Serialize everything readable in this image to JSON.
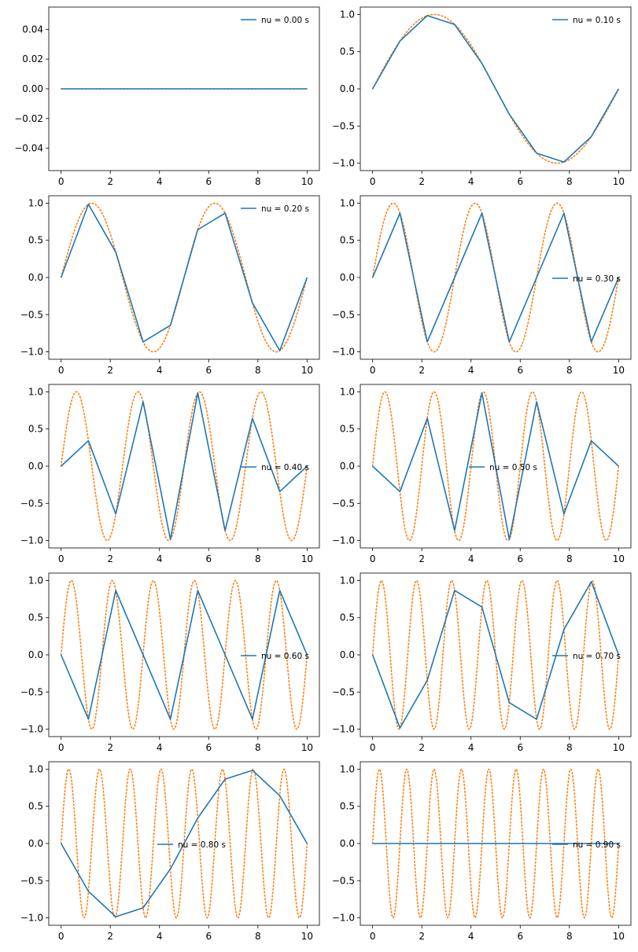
{
  "colors": {
    "sampled": "#1f77b4",
    "continuous": "#ff7f0e",
    "axes": "#000000",
    "background": "#ffffff"
  },
  "chart_data": [
    {
      "type": "line",
      "legend": "nu = 0.00 s",
      "legend_loc": "upper right",
      "sample_times": [
        0,
        1.111,
        2.222,
        3.333,
        4.444,
        5.556,
        6.667,
        7.778,
        8.889,
        10
      ],
      "sampled_values": [
        0,
        0,
        0,
        0,
        0,
        0,
        0,
        0,
        0,
        0
      ],
      "continuous_cycles": 0,
      "xlim": [
        -0.5,
        10.5
      ],
      "ylim": [
        -0.055,
        0.055
      ],
      "xticks": [
        0,
        2,
        4,
        6,
        8,
        10
      ],
      "yticks": [
        -0.04,
        -0.02,
        0.0,
        0.02,
        0.04
      ],
      "ytick_labels": [
        "−0.04",
        "−0.02",
        "0.00",
        "0.02",
        "0.04"
      ]
    },
    {
      "type": "line",
      "legend": "nu = 0.10 s",
      "legend_loc": "upper right",
      "sample_times": [
        0,
        1.111,
        2.222,
        3.333,
        4.444,
        5.556,
        6.667,
        7.778,
        8.889,
        10
      ],
      "sampled_values": [
        0,
        0.643,
        0.985,
        0.866,
        0.342,
        -0.342,
        -0.866,
        -0.985,
        -0.643,
        0
      ],
      "continuous_cycles": 1,
      "xlim": [
        -0.5,
        10.5
      ],
      "ylim": [
        -1.1,
        1.1
      ],
      "xticks": [
        0,
        2,
        4,
        6,
        8,
        10
      ],
      "yticks": [
        -1,
        -0.5,
        0,
        0.5,
        1
      ],
      "ytick_labels": [
        "−1.0",
        "−0.5",
        "0.0",
        "0.5",
        "1.0"
      ]
    },
    {
      "type": "line",
      "legend": "nu = 0.20 s",
      "legend_loc": "upper right",
      "sample_times": [
        0,
        1.111,
        2.222,
        3.333,
        4.444,
        5.556,
        6.667,
        7.778,
        8.889,
        10
      ],
      "sampled_values": [
        0,
        0.985,
        0.342,
        -0.866,
        -0.643,
        0.643,
        0.866,
        -0.342,
        -0.985,
        0
      ],
      "continuous_cycles": 2,
      "xlim": [
        -0.5,
        10.5
      ],
      "ylim": [
        -1.1,
        1.1
      ],
      "xticks": [
        0,
        2,
        4,
        6,
        8,
        10
      ],
      "yticks": [
        -1,
        -0.5,
        0,
        0.5,
        1
      ],
      "ytick_labels": [
        "−1.0",
        "−0.5",
        "0.0",
        "0.5",
        "1.0"
      ]
    },
    {
      "type": "line",
      "legend": "nu = 0.30 s",
      "legend_loc": "center right",
      "sample_times": [
        0,
        1.111,
        2.222,
        3.333,
        4.444,
        5.556,
        6.667,
        7.778,
        8.889,
        10
      ],
      "sampled_values": [
        0,
        0.866,
        -0.866,
        0,
        0.866,
        -0.866,
        0,
        0.866,
        -0.866,
        0
      ],
      "continuous_cycles": 3,
      "xlim": [
        -0.5,
        10.5
      ],
      "ylim": [
        -1.1,
        1.1
      ],
      "xticks": [
        0,
        2,
        4,
        6,
        8,
        10
      ],
      "yticks": [
        -1,
        -0.5,
        0,
        0.5,
        1
      ],
      "ytick_labels": [
        "−1.0",
        "−0.5",
        "0.0",
        "0.5",
        "1.0"
      ]
    },
    {
      "type": "line",
      "legend": "nu = 0.40 s",
      "legend_loc": "center right",
      "sample_times": [
        0,
        1.111,
        2.222,
        3.333,
        4.444,
        5.556,
        6.667,
        7.778,
        8.889,
        10
      ],
      "sampled_values": [
        0,
        0.342,
        -0.643,
        0.866,
        -0.985,
        0.985,
        -0.866,
        0.643,
        -0.342,
        0
      ],
      "continuous_cycles": 4,
      "xlim": [
        -0.5,
        10.5
      ],
      "ylim": [
        -1.1,
        1.1
      ],
      "xticks": [
        0,
        2,
        4,
        6,
        8,
        10
      ],
      "yticks": [
        -1,
        -0.5,
        0,
        0.5,
        1
      ],
      "ytick_labels": [
        "−1.0",
        "−0.5",
        "0.0",
        "0.5",
        "1.0"
      ]
    },
    {
      "type": "line",
      "legend": "nu = 0.50 s",
      "legend_loc": "center",
      "sample_times": [
        0,
        1.111,
        2.222,
        3.333,
        4.444,
        5.556,
        6.667,
        7.778,
        8.889,
        10
      ],
      "sampled_values": [
        0,
        -0.342,
        0.643,
        -0.866,
        0.985,
        -0.985,
        0.866,
        -0.643,
        0.342,
        0
      ],
      "continuous_cycles": 5,
      "xlim": [
        -0.5,
        10.5
      ],
      "ylim": [
        -1.1,
        1.1
      ],
      "xticks": [
        0,
        2,
        4,
        6,
        8,
        10
      ],
      "yticks": [
        -1,
        -0.5,
        0,
        0.5,
        1
      ],
      "ytick_labels": [
        "−1.0",
        "−0.5",
        "0.0",
        "0.5",
        "1.0"
      ]
    },
    {
      "type": "line",
      "legend": "nu = 0.60 s",
      "legend_loc": "center right",
      "sample_times": [
        0,
        1.111,
        2.222,
        3.333,
        4.444,
        5.556,
        6.667,
        7.778,
        8.889,
        10
      ],
      "sampled_values": [
        0,
        -0.866,
        0.866,
        0,
        -0.866,
        0.866,
        0,
        -0.866,
        0.866,
        0
      ],
      "continuous_cycles": 6,
      "xlim": [
        -0.5,
        10.5
      ],
      "ylim": [
        -1.1,
        1.1
      ],
      "xticks": [
        0,
        2,
        4,
        6,
        8,
        10
      ],
      "yticks": [
        -1,
        -0.5,
        0,
        0.5,
        1
      ],
      "ytick_labels": [
        "−1.0",
        "−0.5",
        "0.0",
        "0.5",
        "1.0"
      ]
    },
    {
      "type": "line",
      "legend": "nu = 0.70 s",
      "legend_loc": "center right",
      "sample_times": [
        0,
        1.111,
        2.222,
        3.333,
        4.444,
        5.556,
        6.667,
        7.778,
        8.889,
        10
      ],
      "sampled_values": [
        0,
        -0.985,
        -0.342,
        0.866,
        0.643,
        -0.643,
        -0.866,
        0.342,
        0.985,
        0
      ],
      "continuous_cycles": 7,
      "xlim": [
        -0.5,
        10.5
      ],
      "ylim": [
        -1.1,
        1.1
      ],
      "xticks": [
        0,
        2,
        4,
        6,
        8,
        10
      ],
      "yticks": [
        -1,
        -0.5,
        0,
        0.5,
        1
      ],
      "ytick_labels": [
        "−1.0",
        "−0.5",
        "0.0",
        "0.5",
        "1.0"
      ]
    },
    {
      "type": "line",
      "legend": "nu = 0.80 s",
      "legend_loc": "center",
      "sample_times": [
        0,
        1.111,
        2.222,
        3.333,
        4.444,
        5.556,
        6.667,
        7.778,
        8.889,
        10
      ],
      "sampled_values": [
        0,
        -0.643,
        -0.985,
        -0.866,
        -0.342,
        0.342,
        0.866,
        0.985,
        0.643,
        0
      ],
      "continuous_cycles": 8,
      "xlim": [
        -0.5,
        10.5
      ],
      "ylim": [
        -1.1,
        1.1
      ],
      "xticks": [
        0,
        2,
        4,
        6,
        8,
        10
      ],
      "yticks": [
        -1,
        -0.5,
        0,
        0.5,
        1
      ],
      "ytick_labels": [
        "−1.0",
        "−0.5",
        "0.0",
        "0.5",
        "1.0"
      ]
    },
    {
      "type": "line",
      "legend": "nu = 0.90 s",
      "legend_loc": "center right",
      "sample_times": [
        0,
        1.111,
        2.222,
        3.333,
        4.444,
        5.556,
        6.667,
        7.778,
        8.889,
        10
      ],
      "sampled_values": [
        0,
        0,
        0,
        0,
        0,
        0,
        0,
        0,
        0,
        0
      ],
      "continuous_cycles": 9,
      "xlim": [
        -0.5,
        10.5
      ],
      "ylim": [
        -1.1,
        1.1
      ],
      "xticks": [
        0,
        2,
        4,
        6,
        8,
        10
      ],
      "yticks": [
        -1,
        -0.5,
        0,
        0.5,
        1
      ],
      "ytick_labels": [
        "−1.0",
        "−0.5",
        "0.0",
        "0.5",
        "1.0"
      ]
    }
  ]
}
